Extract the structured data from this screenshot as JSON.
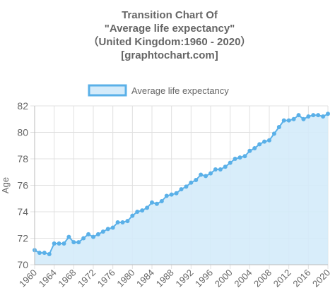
{
  "chart_data": {
    "type": "line",
    "title": [
      "Transition Chart Of",
      "\"Average life expectancy\"",
      "（United Kingdom:1960 - 2020）",
      "[graphtochart.com]"
    ],
    "y_label": "Age",
    "x": [
      1960,
      1961,
      1962,
      1963,
      1964,
      1965,
      1966,
      1967,
      1968,
      1969,
      1970,
      1971,
      1972,
      1973,
      1974,
      1975,
      1976,
      1977,
      1978,
      1979,
      1980,
      1981,
      1982,
      1983,
      1984,
      1985,
      1986,
      1987,
      1988,
      1989,
      1990,
      1991,
      1992,
      1993,
      1994,
      1995,
      1996,
      1997,
      1998,
      1999,
      2000,
      2001,
      2002,
      2003,
      2004,
      2005,
      2006,
      2007,
      2008,
      2009,
      2010,
      2011,
      2012,
      2013,
      2014,
      2015,
      2016,
      2017,
      2018,
      2019,
      2020
    ],
    "series": [
      {
        "name": "Average life expectancy",
        "color": "#5ab0e8",
        "fill": "#d4ebfa",
        "values": [
          71.1,
          70.9,
          70.9,
          70.8,
          71.6,
          71.6,
          71.6,
          72.1,
          71.7,
          71.7,
          72.0,
          72.3,
          72.1,
          72.3,
          72.5,
          72.7,
          72.8,
          73.2,
          73.2,
          73.3,
          73.7,
          74.0,
          74.1,
          74.3,
          74.7,
          74.6,
          74.8,
          75.2,
          75.3,
          75.4,
          75.7,
          75.9,
          76.2,
          76.4,
          76.8,
          76.7,
          76.9,
          77.2,
          77.2,
          77.4,
          77.7,
          78.0,
          78.1,
          78.2,
          78.6,
          78.8,
          79.1,
          79.3,
          79.4,
          79.9,
          80.4,
          80.9,
          80.9,
          81.0,
          81.3,
          81.0,
          81.2,
          81.3,
          81.3,
          81.2,
          81.4
        ]
      }
    ],
    "xlim": [
      1960,
      2020
    ],
    "xticks": [
      1960,
      1964,
      1968,
      1972,
      1976,
      1980,
      1984,
      1988,
      1992,
      1996,
      2000,
      2004,
      2008,
      2012,
      2016,
      2020
    ],
    "ylim": [
      70,
      82
    ],
    "yticks": [
      70,
      72,
      74,
      76,
      78,
      80,
      82
    ],
    "grid": true
  }
}
